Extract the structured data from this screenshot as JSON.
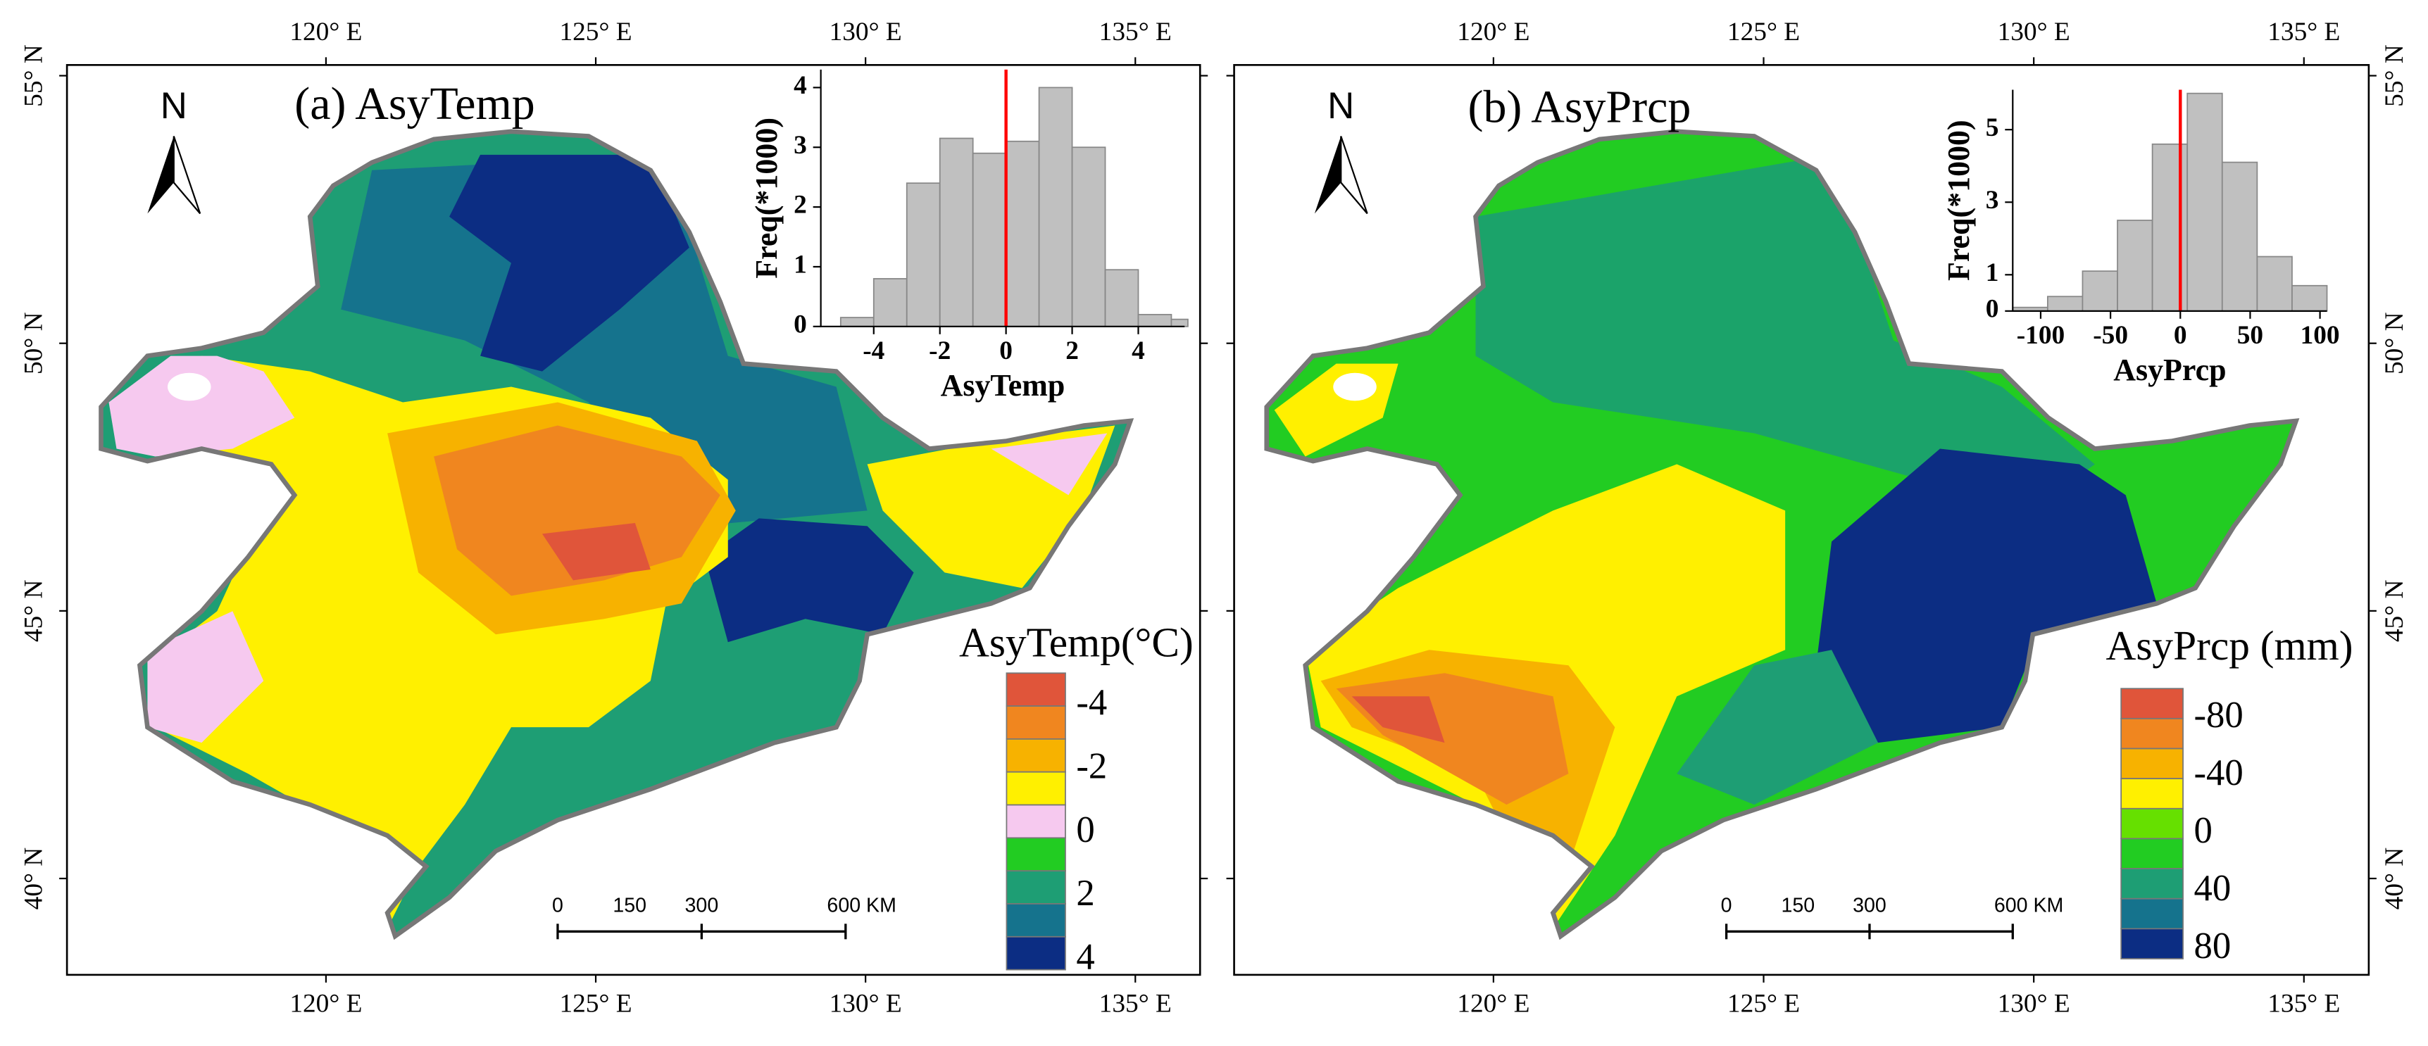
{
  "panels": [
    {
      "title": "(a) AsyTemp",
      "map": {
        "xlim": [
          115.2,
          136.2
        ],
        "ylim": [
          38.2,
          55.2
        ],
        "xticks": [
          {
            "value": 120,
            "label": "120° E"
          },
          {
            "value": 125,
            "label": "125° E"
          },
          {
            "value": 130,
            "label": "130° E"
          },
          {
            "value": 135,
            "label": "135° E"
          }
        ],
        "yticks": [
          {
            "value": 40,
            "label": "40° N"
          },
          {
            "value": 45,
            "label": "45° N"
          },
          {
            "value": 50,
            "label": "50° N"
          },
          {
            "value": 55,
            "label": "55° N"
          }
        ],
        "north": "N"
      },
      "legend": {
        "title": "AsyTemp(°C)",
        "colors": [
          "#e0553a",
          "#f0861f",
          "#f7b200",
          "#fff000",
          "#f6c9ef",
          "#22cc22",
          "#1e9e74",
          "#15738d",
          "#0c2d83"
        ],
        "labels": [
          -4,
          -2,
          0,
          2,
          4
        ]
      },
      "scalebar": {
        "labels": [
          "0",
          "150",
          "300",
          "600 KM"
        ]
      },
      "histogram": {
        "type": "histogram",
        "bins": [
          -5,
          -4,
          -3,
          -2,
          -1,
          0,
          1,
          2,
          3,
          4,
          5,
          5.5
        ],
        "counts": [
          0.15,
          0.8,
          2.4,
          3.15,
          2.9,
          3.1,
          4.0,
          3.0,
          0.95,
          0.2,
          0.12
        ],
        "color": "#c0c0c0",
        "ref_line": 0,
        "ref_color": "#ff0000",
        "xlim": [
          -5.6,
          5.4
        ],
        "ylim": [
          0,
          4.3
        ],
        "xticks": [
          -4,
          -2,
          0,
          2,
          4
        ],
        "yticks": [
          0,
          1,
          2,
          3,
          4
        ],
        "xlabel": "AsyTemp",
        "ylabel": "Freq(*1000)"
      }
    },
    {
      "title": "(b) AsyPrcp",
      "map": {
        "xlim": [
          115.2,
          136.2
        ],
        "ylim": [
          38.2,
          55.2
        ],
        "xticks": [
          {
            "value": 120,
            "label": "120° E"
          },
          {
            "value": 125,
            "label": "125° E"
          },
          {
            "value": 130,
            "label": "130° E"
          },
          {
            "value": 135,
            "label": "135° E"
          }
        ],
        "yticks": [
          {
            "value": 40,
            "label": "40° N"
          },
          {
            "value": 45,
            "label": "45° N"
          },
          {
            "value": 50,
            "label": "50° N"
          },
          {
            "value": 55,
            "label": "55° N"
          }
        ],
        "north": "N"
      },
      "legend": {
        "title": "AsyPrcp (mm)",
        "colors": [
          "#e0553a",
          "#f0861f",
          "#f7b200",
          "#fff000",
          "#66e000",
          "#22cc22",
          "#1e9e74",
          "#15738d",
          "#0c2d83"
        ],
        "labels": [
          -80,
          -40,
          0,
          40,
          80
        ]
      },
      "scalebar": {
        "labels": [
          "0",
          "150",
          "300",
          "600 KM"
        ]
      },
      "histogram": {
        "type": "histogram",
        "bins": [
          -120,
          -95,
          -70,
          -45,
          -20,
          5,
          30,
          55,
          80,
          105
        ],
        "counts": [
          0.1,
          0.4,
          1.1,
          2.5,
          4.6,
          6.0,
          4.1,
          1.5,
          0.7
        ],
        "color": "#c0c0c0",
        "ref_line": 0,
        "ref_color": "#ff0000",
        "xlim": [
          -120,
          105
        ],
        "ylim": [
          0,
          6.1
        ],
        "xticks": [
          -100,
          -50,
          0,
          50,
          100
        ],
        "yticks": [
          0,
          1,
          3,
          5
        ],
        "xlabel": "AsyPrcp",
        "ylabel": "Freq(*1000)"
      }
    }
  ]
}
